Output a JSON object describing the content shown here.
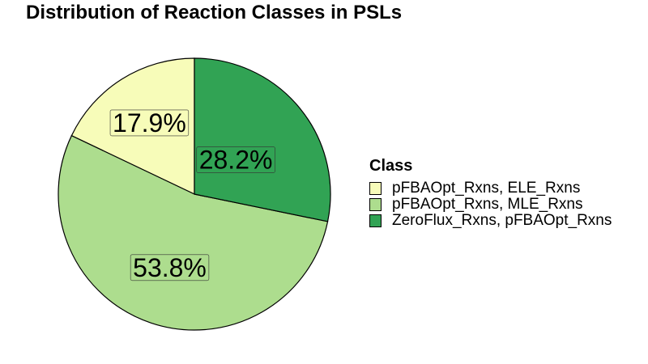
{
  "chart_data": {
    "type": "pie",
    "title": "Distribution of Reaction Classes in PSLs",
    "legend_title": "Class",
    "legend_position": "right",
    "categories": [
      "pFBAOpt_Rxns, ELE_Rxns",
      "pFBAOpt_Rxns, MLE_Rxns",
      "ZeroFlux_Rxns, pFBAOpt_Rxns"
    ],
    "values": [
      17.9,
      53.8,
      28.2
    ],
    "slice_labels": [
      "17.9%",
      "53.8%",
      "28.2%"
    ],
    "colors": [
      "#F7FCB9",
      "#ADDD8E",
      "#31A354"
    ]
  }
}
